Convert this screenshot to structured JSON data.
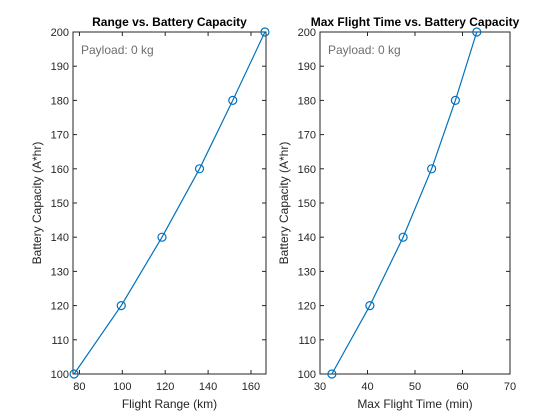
{
  "chart_data": [
    {
      "type": "line",
      "title": "Range vs. Battery Capacity",
      "xlabel": "Flight Range (km)",
      "ylabel": "Battery Capacity (A*hr)",
      "annotation": "Payload: 0 kg",
      "xlim": [
        77,
        167
      ],
      "ylim": [
        100,
        200
      ],
      "xticks": [
        80,
        100,
        120,
        140,
        160
      ],
      "yticks": [
        100,
        110,
        120,
        130,
        140,
        150,
        160,
        170,
        180,
        190,
        200
      ],
      "grid": true,
      "color": "#0072BD",
      "marker": "circle",
      "series": [
        {
          "x": [
            77.5,
            99.5,
            118.5,
            136,
            151.5,
            166.5
          ],
          "y": [
            100,
            120,
            140,
            160,
            180,
            200
          ]
        }
      ]
    },
    {
      "type": "line",
      "title": "Max Flight Time vs. Battery Capacity",
      "xlabel": "Max Flight Time (min)",
      "ylabel": "Battery Capacity (A*hr)",
      "annotation": "Payload: 0 kg",
      "xlim": [
        30,
        70
      ],
      "ylim": [
        100,
        200
      ],
      "xticks": [
        30,
        40,
        50,
        60,
        70
      ],
      "yticks": [
        100,
        110,
        120,
        130,
        140,
        150,
        160,
        170,
        180,
        190,
        200
      ],
      "grid": true,
      "color": "#0072BD",
      "marker": "circle",
      "series": [
        {
          "x": [
            32.5,
            40.5,
            47.5,
            53.5,
            58.5,
            63
          ],
          "y": [
            100,
            120,
            140,
            160,
            180,
            200
          ]
        }
      ]
    }
  ]
}
